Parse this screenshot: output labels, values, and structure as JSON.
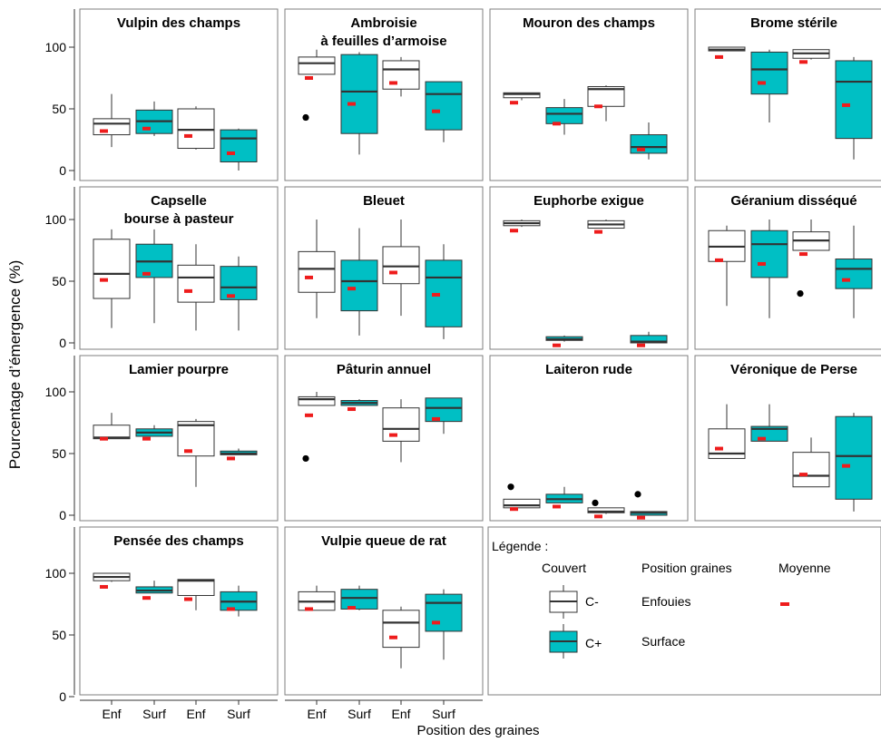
{
  "chart_data": {
    "type": "boxplot",
    "layout": "facet grid, 4 columns x 4 rows, shared y axis, shared x axis",
    "ylabel": "Pourcentage d’émergence (%)",
    "xlabel": "Position des graines",
    "ylim": [
      0,
      110
    ],
    "y_ticks": [
      "0",
      "50",
      "100"
    ],
    "x_categories": [
      "Enf",
      "Surf",
      "Enf",
      "Surf"
    ],
    "colors": {
      "C-": "#ffffff",
      "C+": "#00bfc4",
      "mean": "#ee1c1c",
      "outlier": "#000000"
    },
    "legend": {
      "title": "Légende :",
      "col_couvert": "Couvert",
      "col_position": "Position graines",
      "col_moyenne": "Moyenne",
      "c_minus": "C-",
      "c_plus": "C+",
      "enfouies": "Enfouies",
      "surface": "Surface"
    },
    "box_order": [
      {
        "position": "Enfouies",
        "couvert": "C-"
      },
      {
        "position": "Surface",
        "couvert": "C-"
      },
      {
        "position": "Enfouies",
        "couvert": "C+"
      },
      {
        "position": "Surface",
        "couvert": "C+"
      }
    ],
    "panels": [
      {
        "title": [
          "Vulpin des champs"
        ],
        "boxes": [
          {
            "whisker_low": 19,
            "q1": 29,
            "median": 38,
            "q3": 42,
            "whisker_high": 62,
            "mean": 32
          },
          {
            "whisker_low": 28,
            "q1": 30,
            "median": 40,
            "q3": 49,
            "whisker_high": 56,
            "mean": 34
          },
          {
            "whisker_low": 17,
            "q1": 18,
            "median": 33,
            "q3": 50,
            "whisker_high": 52,
            "mean": 28
          },
          {
            "whisker_low": 0,
            "q1": 7,
            "median": 26,
            "q3": 33,
            "whisker_high": 34,
            "mean": 14
          }
        ]
      },
      {
        "title": [
          "Ambroisie",
          "à feuilles d’armoise"
        ],
        "boxes": [
          {
            "whisker_low": 78,
            "q1": 78,
            "median": 87,
            "q3": 92,
            "whisker_high": 98,
            "mean": 75,
            "outliers": [
              43
            ]
          },
          {
            "whisker_low": 13,
            "q1": 30,
            "median": 64,
            "q3": 94,
            "whisker_high": 96,
            "mean": 54
          },
          {
            "whisker_low": 60,
            "q1": 66,
            "median": 82,
            "q3": 89,
            "whisker_high": 92,
            "mean": 71
          },
          {
            "whisker_low": 23,
            "q1": 33,
            "median": 62,
            "q3": 72,
            "whisker_high": 72,
            "mean": 48
          }
        ]
      },
      {
        "title": [
          "Mouron des champs"
        ],
        "boxes": [
          {
            "whisker_low": 57,
            "q1": 59,
            "median": 62,
            "q3": 63,
            "whisker_high": 63,
            "mean": 55
          },
          {
            "whisker_low": 29,
            "q1": 38,
            "median": 46,
            "q3": 51,
            "whisker_high": 58,
            "mean": 38
          },
          {
            "whisker_low": 40,
            "q1": 52,
            "median": 66,
            "q3": 68,
            "whisker_high": 69,
            "mean": 52
          },
          {
            "whisker_low": 9,
            "q1": 14,
            "median": 19,
            "q3": 29,
            "whisker_high": 39,
            "mean": 17
          }
        ]
      },
      {
        "title": [
          "Brome stérile"
        ],
        "boxes": [
          {
            "whisker_low": 97,
            "q1": 97,
            "median": 98,
            "q3": 100,
            "whisker_high": 100,
            "mean": 92
          },
          {
            "whisker_low": 39,
            "q1": 62,
            "median": 82,
            "q3": 96,
            "whisker_high": 98,
            "mean": 71
          },
          {
            "whisker_low": 90,
            "q1": 91,
            "median": 95,
            "q3": 98,
            "whisker_high": 98,
            "mean": 88
          },
          {
            "whisker_low": 9,
            "q1": 26,
            "median": 72,
            "q3": 89,
            "whisker_high": 92,
            "mean": 53
          }
        ]
      },
      {
        "title": [
          "Capselle",
          "bourse à pasteur"
        ],
        "boxes": [
          {
            "whisker_low": 12,
            "q1": 36,
            "median": 56,
            "q3": 84,
            "whisker_high": 92,
            "mean": 51
          },
          {
            "whisker_low": 16,
            "q1": 53,
            "median": 66,
            "q3": 80,
            "whisker_high": 92,
            "mean": 56
          },
          {
            "whisker_low": 10,
            "q1": 33,
            "median": 53,
            "q3": 63,
            "whisker_high": 80,
            "mean": 42
          },
          {
            "whisker_low": 10,
            "q1": 35,
            "median": 45,
            "q3": 62,
            "whisker_high": 70,
            "mean": 38
          }
        ]
      },
      {
        "title": [
          "Bleuet"
        ],
        "boxes": [
          {
            "whisker_low": 20,
            "q1": 41,
            "median": 60,
            "q3": 74,
            "whisker_high": 100,
            "mean": 53
          },
          {
            "whisker_low": 6,
            "q1": 26,
            "median": 50,
            "q3": 67,
            "whisker_high": 93,
            "mean": 44
          },
          {
            "whisker_low": 22,
            "q1": 48,
            "median": 62,
            "q3": 78,
            "whisker_high": 100,
            "mean": 57
          },
          {
            "whisker_low": 3,
            "q1": 13,
            "median": 53,
            "q3": 67,
            "whisker_high": 80,
            "mean": 39
          }
        ]
      },
      {
        "title": [
          "Euphorbe exigue"
        ],
        "boxes": [
          {
            "whisker_low": 94,
            "q1": 95,
            "median": 97,
            "q3": 99,
            "whisker_high": 100,
            "mean": 91
          },
          {
            "whisker_low": 1,
            "q1": 2,
            "median": 3,
            "q3": 5,
            "whisker_high": 6,
            "mean": -2
          },
          {
            "whisker_low": 93,
            "q1": 93,
            "median": 96,
            "q3": 99,
            "whisker_high": 100,
            "mean": 90
          },
          {
            "whisker_low": 0,
            "q1": 0,
            "median": 1,
            "q3": 6,
            "whisker_high": 9,
            "mean": -2
          }
        ]
      },
      {
        "title": [
          "Géranium disséqué"
        ],
        "boxes": [
          {
            "whisker_low": 30,
            "q1": 66,
            "median": 78,
            "q3": 91,
            "whisker_high": 95,
            "mean": 67
          },
          {
            "whisker_low": 20,
            "q1": 53,
            "median": 80,
            "q3": 91,
            "whisker_high": 100,
            "mean": 64
          },
          {
            "whisker_low": 75,
            "q1": 75,
            "median": 83,
            "q3": 90,
            "whisker_high": 100,
            "mean": 72,
            "outliers": [
              40
            ]
          },
          {
            "whisker_low": 20,
            "q1": 44,
            "median": 60,
            "q3": 68,
            "whisker_high": 95,
            "mean": 51
          }
        ]
      },
      {
        "title": [
          "Lamier pourpre"
        ],
        "boxes": [
          {
            "whisker_low": 62,
            "q1": 62,
            "median": 63,
            "q3": 73,
            "whisker_high": 83,
            "mean": 62
          },
          {
            "whisker_low": 64,
            "q1": 64,
            "median": 67,
            "q3": 70,
            "whisker_high": 73,
            "mean": 62
          },
          {
            "whisker_low": 23,
            "q1": 48,
            "median": 73,
            "q3": 76,
            "whisker_high": 78,
            "mean": 52
          },
          {
            "whisker_low": 49,
            "q1": 49,
            "median": 50,
            "q3": 52,
            "whisker_high": 54,
            "mean": 46
          }
        ]
      },
      {
        "title": [
          "Pâturin annuel"
        ],
        "boxes": [
          {
            "whisker_low": 89,
            "q1": 89,
            "median": 94,
            "q3": 96,
            "whisker_high": 100,
            "mean": 81,
            "outliers": [
              46
            ]
          },
          {
            "whisker_low": 89,
            "q1": 89,
            "median": 91,
            "q3": 93,
            "whisker_high": 94,
            "mean": 86
          },
          {
            "whisker_low": 43,
            "q1": 60,
            "median": 70,
            "q3": 87,
            "whisker_high": 94,
            "mean": 65
          },
          {
            "whisker_low": 66,
            "q1": 76,
            "median": 87,
            "q3": 95,
            "whisker_high": 95,
            "mean": 78
          }
        ]
      },
      {
        "title": [
          "Laiteron rude"
        ],
        "boxes": [
          {
            "whisker_low": 6,
            "q1": 6,
            "median": 8,
            "q3": 13,
            "whisker_high": 13,
            "mean": 5,
            "outliers": [
              23
            ]
          },
          {
            "whisker_low": 10,
            "q1": 10,
            "median": 13,
            "q3": 17,
            "whisker_high": 23,
            "mean": 7
          },
          {
            "whisker_low": 1,
            "q1": 2,
            "median": 3,
            "q3": 6,
            "whisker_high": 6,
            "mean": -1,
            "outliers": [
              10
            ]
          },
          {
            "whisker_low": 0,
            "q1": 0,
            "median": 2,
            "q3": 3,
            "whisker_high": 3,
            "mean": -2,
            "outliers": [
              17
            ]
          }
        ]
      },
      {
        "title": [
          "Véronique de Perse"
        ],
        "boxes": [
          {
            "whisker_low": 46,
            "q1": 46,
            "median": 50,
            "q3": 70,
            "whisker_high": 90,
            "mean": 54
          },
          {
            "whisker_low": 60,
            "q1": 60,
            "median": 70,
            "q3": 72,
            "whisker_high": 90,
            "mean": 62
          },
          {
            "whisker_low": 23,
            "q1": 23,
            "median": 32,
            "q3": 51,
            "whisker_high": 63,
            "mean": 33
          },
          {
            "whisker_low": 3,
            "q1": 13,
            "median": 48,
            "q3": 80,
            "whisker_high": 83,
            "mean": 40
          }
        ]
      },
      {
        "title": [
          "Pensée des champs"
        ],
        "boxes": [
          {
            "whisker_low": 93,
            "q1": 94,
            "median": 97,
            "q3": 100,
            "whisker_high": 100,
            "mean": 89
          },
          {
            "whisker_low": 84,
            "q1": 84,
            "median": 86,
            "q3": 89,
            "whisker_high": 94,
            "mean": 80
          },
          {
            "whisker_low": 70,
            "q1": 82,
            "median": 94,
            "q3": 95,
            "whisker_high": 95,
            "mean": 79
          },
          {
            "whisker_low": 65,
            "q1": 70,
            "median": 77,
            "q3": 85,
            "whisker_high": 90,
            "mean": 71
          }
        ]
      },
      {
        "title": [
          "Vulpie queue de rat"
        ],
        "boxes": [
          {
            "whisker_low": 70,
            "q1": 70,
            "median": 77,
            "q3": 85,
            "whisker_high": 90,
            "mean": 71
          },
          {
            "whisker_low": 70,
            "q1": 71,
            "median": 80,
            "q3": 87,
            "whisker_high": 90,
            "mean": 72
          },
          {
            "whisker_low": 23,
            "q1": 40,
            "median": 60,
            "q3": 70,
            "whisker_high": 73,
            "mean": 48
          },
          {
            "whisker_low": 30,
            "q1": 53,
            "median": 76,
            "q3": 83,
            "whisker_high": 87,
            "mean": 60
          }
        ]
      }
    ]
  }
}
